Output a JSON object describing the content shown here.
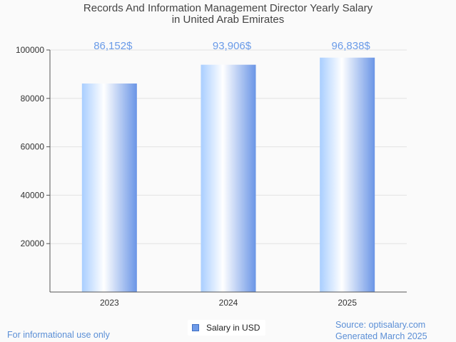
{
  "chart_data": {
    "type": "bar",
    "title_lines": [
      "Records And Information Management Director Yearly Salary",
      "in United Arab Emirates"
    ],
    "categories": [
      "2023",
      "2024",
      "2025"
    ],
    "series": [
      {
        "name": "Salary in USD",
        "values": [
          86152,
          93906,
          96838
        ]
      }
    ],
    "data_labels": [
      "86,152$",
      "93,906$",
      "96,838$"
    ],
    "yticks": [
      "20000",
      "40000",
      "60000",
      "80000",
      "100000"
    ],
    "ylim": [
      0,
      100000
    ],
    "grid": true,
    "legend_position": "bottom",
    "colors": {
      "bar_light": "#dcebff",
      "bar_dark": "#6f9be8",
      "label": "#6a9be8",
      "grid": "#e3e3e3"
    }
  },
  "footer": {
    "disclaimer": "For informational use only",
    "source": "Source: optisalary.com",
    "generated": "Generated March 2025"
  }
}
